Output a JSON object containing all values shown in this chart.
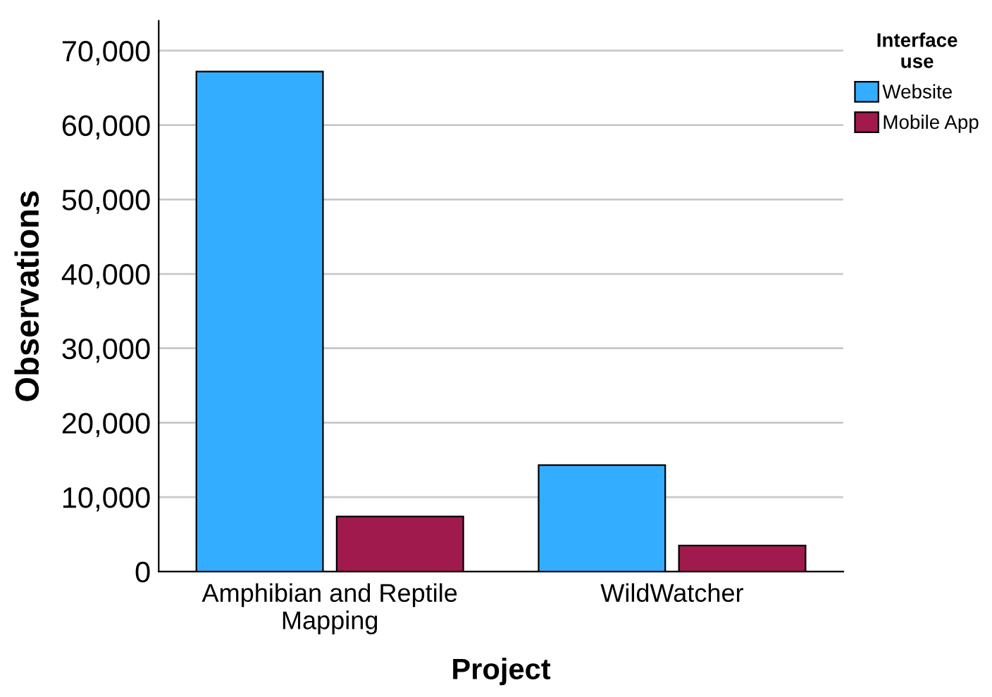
{
  "chart_data": {
    "type": "bar",
    "xlabel": "Project",
    "ylabel": "Observations",
    "legend_title": "Interface\nuse",
    "categories": [
      "Amphibian and Reptile\nMapping",
      "WildWatcher"
    ],
    "series": [
      {
        "name": "Website",
        "color": "#33adff",
        "values": [
          67200,
          14300
        ]
      },
      {
        "name": "Mobile App",
        "color": "#a11a4e",
        "values": [
          7400,
          3500
        ]
      }
    ],
    "ylim": [
      0,
      74000
    ],
    "yticks": [
      {
        "value": 0,
        "label": "0"
      },
      {
        "value": 10000,
        "label": "10,000"
      },
      {
        "value": 20000,
        "label": "20,000"
      },
      {
        "value": 30000,
        "label": "30,000"
      },
      {
        "value": 40000,
        "label": "40,000"
      },
      {
        "value": 50000,
        "label": "50,000"
      },
      {
        "value": 60000,
        "label": "60,000"
      },
      {
        "value": 70000,
        "label": "70,000"
      }
    ],
    "grid": "y",
    "legend": "top right"
  }
}
